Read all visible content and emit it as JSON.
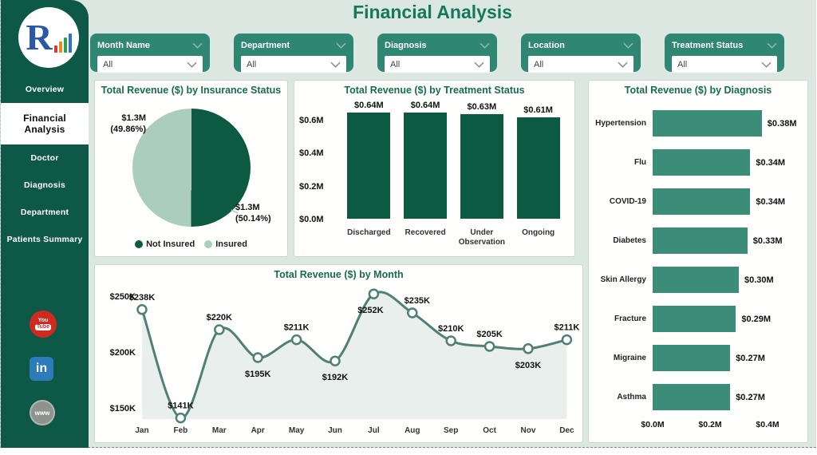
{
  "app": {
    "title": "Financial Analysis",
    "logo_letter": "R"
  },
  "sidebar": {
    "items": [
      {
        "label": "Overview",
        "active": false
      },
      {
        "label": "Financial Analysis",
        "active": true
      },
      {
        "label": "Doctor",
        "active": false
      },
      {
        "label": "Diagnosis",
        "active": false
      },
      {
        "label": "Department",
        "active": false
      },
      {
        "label": "Patients Summary",
        "active": false
      }
    ],
    "social": [
      {
        "name": "youtube",
        "lines": [
          "You",
          "Tube"
        ]
      },
      {
        "name": "linkedin",
        "label": "in"
      },
      {
        "name": "globe",
        "label": "www"
      }
    ]
  },
  "filters": [
    {
      "label": "Month Name",
      "value": "All"
    },
    {
      "label": "Department",
      "value": "All"
    },
    {
      "label": "Diagnosis",
      "value": "All"
    },
    {
      "label": "Location",
      "value": "All"
    },
    {
      "label": "Treatment Status",
      "value": "All"
    }
  ],
  "colors": {
    "sidebar_green": "#0d5847",
    "filter_green": "#2e8673",
    "title_green": "#14795c",
    "bar_dark_green": "#0d5a42",
    "bar_teal": "#3b8d77",
    "pie_light_green": "#abcdc0",
    "line_teal": "#507f75",
    "background": "#dbe7e0"
  },
  "chart_data": [
    {
      "id": "insurance",
      "type": "pie",
      "title": "Total Revenue ($) by Insurance Status",
      "slices": [
        {
          "label": "Not Insured",
          "value_label": "$1.3M",
          "pct": 50.14,
          "pct_label": "(50.14%)",
          "color": "#0d5a42"
        },
        {
          "label": "Insured",
          "value_label": "$1.3M",
          "pct": 49.86,
          "pct_label": "(49.86%)",
          "color": "#abcdc0"
        }
      ],
      "legend_position": "bottom"
    },
    {
      "id": "treatment",
      "type": "bar",
      "title": "Total Revenue ($) by Treatment Status",
      "categories": [
        "Discharged",
        "Recovered",
        "Under Observation",
        "Ongoing"
      ],
      "values": [
        0.64,
        0.64,
        0.63,
        0.61
      ],
      "labels": [
        "$0.64M",
        "$0.64M",
        "$0.63M",
        "$0.61M"
      ],
      "yticks": [
        {
          "label": "$0.6M",
          "value": 0.6
        },
        {
          "label": "$0.4M",
          "value": 0.4
        },
        {
          "label": "$0.2M",
          "value": 0.2
        },
        {
          "label": "$0.0M",
          "value": 0.0
        }
      ],
      "ylim": [
        0,
        0.675
      ]
    },
    {
      "id": "diagnosis",
      "type": "hbar",
      "title": "Total Revenue ($) by Diagnosis",
      "categories": [
        "Hypertension",
        "Flu",
        "COVID-19",
        "Diabetes",
        "Skin Allergy",
        "Fracture",
        "Migraine",
        "Asthma"
      ],
      "values": [
        0.38,
        0.34,
        0.34,
        0.33,
        0.3,
        0.29,
        0.27,
        0.27
      ],
      "labels": [
        "$0.38M",
        "$0.34M",
        "$0.34M",
        "$0.33M",
        "$0.30M",
        "$0.29M",
        "$0.27M",
        "$0.27M"
      ],
      "xticks": [
        {
          "label": "$0.0M",
          "value": 0.0
        },
        {
          "label": "$0.2M",
          "value": 0.2
        },
        {
          "label": "$0.4M",
          "value": 0.4
        }
      ],
      "xlim": [
        0,
        0.44
      ]
    },
    {
      "id": "month",
      "type": "line",
      "title": "Total Revenue ($) by Month",
      "x": [
        "Jan",
        "Feb",
        "Mar",
        "Apr",
        "May",
        "Jun",
        "Jul",
        "Aug",
        "Sep",
        "Oct",
        "Nov",
        "Dec"
      ],
      "values": [
        238,
        141,
        220,
        195,
        211,
        192,
        252,
        235,
        210,
        205,
        203,
        211
      ],
      "labels": [
        "$238K",
        "$141K",
        "$220K",
        "$195K",
        "$211K",
        "$192K",
        "$252K",
        "$235K",
        "$210K",
        "$205K",
        "$203K",
        "$211K"
      ],
      "yticks": [
        {
          "label": "$250K",
          "value": 250
        },
        {
          "label": "$200K",
          "value": 200
        },
        {
          "label": "$150K",
          "value": 150
        }
      ],
      "ylim": [
        130,
        260
      ],
      "area_fill": true
    }
  ]
}
